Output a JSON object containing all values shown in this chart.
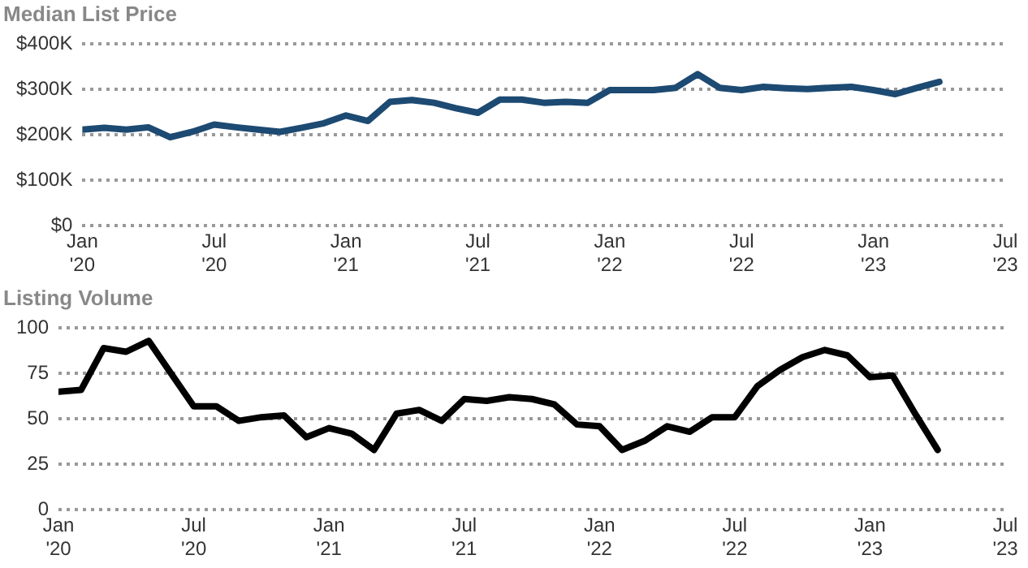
{
  "chart_data": [
    {
      "type": "line",
      "title": "Median List Price",
      "x": [
        "2020-01",
        "2020-02",
        "2020-03",
        "2020-04",
        "2020-05",
        "2020-06",
        "2020-07",
        "2020-08",
        "2020-09",
        "2020-10",
        "2020-11",
        "2020-12",
        "2021-01",
        "2021-02",
        "2021-03",
        "2021-04",
        "2021-05",
        "2021-06",
        "2021-07",
        "2021-08",
        "2021-09",
        "2021-10",
        "2021-11",
        "2021-12",
        "2022-01",
        "2022-02",
        "2022-03",
        "2022-04",
        "2022-05",
        "2022-06",
        "2022-07",
        "2022-08",
        "2022-09",
        "2022-10",
        "2022-11",
        "2022-12",
        "2023-01",
        "2023-02",
        "2023-03",
        "2023-04"
      ],
      "series": [
        {
          "color": "#1c4a72",
          "values": [
            212000,
            216000,
            212000,
            217000,
            195000,
            207000,
            223000,
            217000,
            212000,
            207000,
            216000,
            226000,
            243000,
            231000,
            273000,
            277000,
            271000,
            259000,
            249000,
            278000,
            278000,
            271000,
            273000,
            271000,
            299000,
            299000,
            299000,
            304000,
            334000,
            304000,
            299000,
            306000,
            303000,
            301000,
            304000,
            306000,
            299000,
            290000,
            304000,
            317000
          ]
        }
      ],
      "xlim": [
        "2020-01",
        "2023-07"
      ],
      "xticks": [
        {
          "value": "2020-01",
          "label": "Jan '20"
        },
        {
          "value": "2020-07",
          "label": "Jul '20"
        },
        {
          "value": "2021-01",
          "label": "Jan '21"
        },
        {
          "value": "2021-07",
          "label": "Jul '21"
        },
        {
          "value": "2022-01",
          "label": "Jan '22"
        },
        {
          "value": "2022-07",
          "label": "Jul '22"
        },
        {
          "value": "2023-01",
          "label": "Jan '23"
        },
        {
          "value": "2023-07",
          "label": "Jul '23"
        }
      ],
      "ylim": [
        0,
        400000
      ],
      "yticks": [
        {
          "value": 0,
          "label": "$0"
        },
        {
          "value": 100000,
          "label": "$100K"
        },
        {
          "value": 200000,
          "label": "$200K"
        },
        {
          "value": 300000,
          "label": "$300K"
        },
        {
          "value": 400000,
          "label": "$400K"
        }
      ],
      "grid": "y",
      "legend": false,
      "marker": "none",
      "line_style": "solid"
    },
    {
      "type": "line",
      "title": "Listing Volume",
      "x": [
        "2020-01",
        "2020-02",
        "2020-03",
        "2020-04",
        "2020-05",
        "2020-06",
        "2020-07",
        "2020-08",
        "2020-09",
        "2020-10",
        "2020-11",
        "2020-12",
        "2021-01",
        "2021-02",
        "2021-03",
        "2021-04",
        "2021-05",
        "2021-06",
        "2021-07",
        "2021-08",
        "2021-09",
        "2021-10",
        "2021-11",
        "2021-12",
        "2022-01",
        "2022-02",
        "2022-03",
        "2022-04",
        "2022-05",
        "2022-06",
        "2022-07",
        "2022-08",
        "2022-09",
        "2022-10",
        "2022-11",
        "2022-12",
        "2023-01",
        "2023-02",
        "2023-03",
        "2023-04"
      ],
      "series": [
        {
          "color": "#000000",
          "values": [
            65,
            66,
            89,
            87,
            93,
            75,
            57,
            57,
            49,
            51,
            52,
            40,
            45,
            42,
            33,
            53,
            55,
            49,
            61,
            60,
            62,
            61,
            58,
            47,
            46,
            33,
            38,
            46,
            43,
            51,
            51,
            68,
            77,
            84,
            88,
            85,
            73,
            74,
            53,
            33
          ]
        }
      ],
      "xlim": [
        "2020-01",
        "2023-07"
      ],
      "xticks": [
        {
          "value": "2020-01",
          "label": "Jan '20"
        },
        {
          "value": "2020-07",
          "label": "Jul '20"
        },
        {
          "value": "2021-01",
          "label": "Jan '21"
        },
        {
          "value": "2021-07",
          "label": "Jul '21"
        },
        {
          "value": "2022-01",
          "label": "Jan '22"
        },
        {
          "value": "2022-07",
          "label": "Jul '22"
        },
        {
          "value": "2023-01",
          "label": "Jan '23"
        },
        {
          "value": "2023-07",
          "label": "Jul '23"
        }
      ],
      "ylim": [
        0,
        100
      ],
      "yticks": [
        0,
        25,
        50,
        75,
        100
      ],
      "grid": "y",
      "legend": false,
      "marker": "none",
      "line_style": "solid"
    }
  ]
}
